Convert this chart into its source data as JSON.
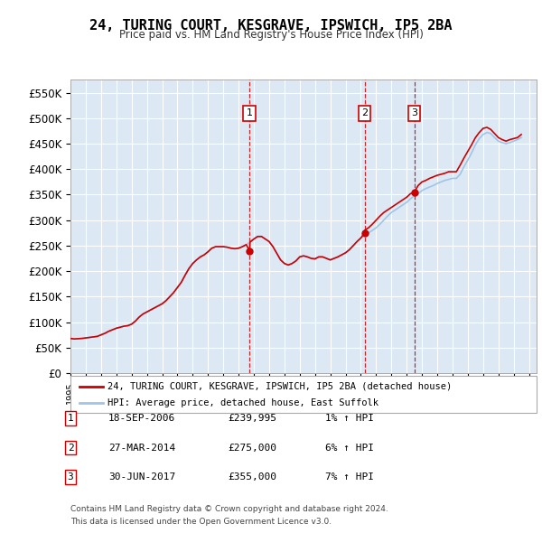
{
  "title": "24, TURING COURT, KESGRAVE, IPSWICH, IP5 2BA",
  "subtitle": "Price paid vs. HM Land Registry's House Price Index (HPI)",
  "ylabel_ticks": [
    "£0",
    "£50K",
    "£100K",
    "£150K",
    "£200K",
    "£250K",
    "£300K",
    "£350K",
    "£400K",
    "£450K",
    "£500K",
    "£550K"
  ],
  "ytick_values": [
    0,
    50000,
    100000,
    150000,
    200000,
    250000,
    300000,
    350000,
    400000,
    450000,
    500000,
    550000
  ],
  "ylim": [
    0,
    575000
  ],
  "xlim_start": 1995.0,
  "xlim_end": 2025.5,
  "background_color": "#dce9f5",
  "plot_bg_color": "#dce9f5",
  "grid_color": "#ffffff",
  "legend_label_red": "24, TURING COURT, KESGRAVE, IPSWICH, IP5 2BA (detached house)",
  "legend_label_blue": "HPI: Average price, detached house, East Suffolk",
  "transactions": [
    {
      "num": 1,
      "date": "18-SEP-2006",
      "price": "£239,995",
      "hpi": "1% ↑ HPI",
      "year": 2006.72,
      "value": 239995
    },
    {
      "num": 2,
      "date": "27-MAR-2014",
      "price": "£275,000",
      "hpi": "6% ↑ HPI",
      "year": 2014.24,
      "value": 275000
    },
    {
      "num": 3,
      "date": "30-JUN-2017",
      "price": "£355,000",
      "hpi": "7% ↑ HPI",
      "year": 2017.5,
      "value": 355000
    }
  ],
  "footnote1": "Contains HM Land Registry data © Crown copyright and database right 2024.",
  "footnote2": "This data is licensed under the Open Government Licence v3.0.",
  "hpi_data": {
    "years": [
      1995.0,
      1995.25,
      1995.5,
      1995.75,
      1996.0,
      1996.25,
      1996.5,
      1996.75,
      1997.0,
      1997.25,
      1997.5,
      1997.75,
      1998.0,
      1998.25,
      1998.5,
      1998.75,
      1999.0,
      1999.25,
      1999.5,
      1999.75,
      2000.0,
      2000.25,
      2000.5,
      2000.75,
      2001.0,
      2001.25,
      2001.5,
      2001.75,
      2002.0,
      2002.25,
      2002.5,
      2002.75,
      2003.0,
      2003.25,
      2003.5,
      2003.75,
      2004.0,
      2004.25,
      2004.5,
      2004.75,
      2005.0,
      2005.25,
      2005.5,
      2005.75,
      2006.0,
      2006.25,
      2006.5,
      2006.75,
      2007.0,
      2007.25,
      2007.5,
      2007.75,
      2008.0,
      2008.25,
      2008.5,
      2008.75,
      2009.0,
      2009.25,
      2009.5,
      2009.75,
      2010.0,
      2010.25,
      2010.5,
      2010.75,
      2011.0,
      2011.25,
      2011.5,
      2011.75,
      2012.0,
      2012.25,
      2012.5,
      2012.75,
      2013.0,
      2013.25,
      2013.5,
      2013.75,
      2014.0,
      2014.25,
      2014.5,
      2014.75,
      2015.0,
      2015.25,
      2015.5,
      2015.75,
      2016.0,
      2016.25,
      2016.5,
      2016.75,
      2017.0,
      2017.25,
      2017.5,
      2017.75,
      2018.0,
      2018.25,
      2018.5,
      2018.75,
      2019.0,
      2019.25,
      2019.5,
      2019.75,
      2020.0,
      2020.25,
      2020.5,
      2020.75,
      2021.0,
      2021.25,
      2021.5,
      2021.75,
      2022.0,
      2022.25,
      2022.5,
      2022.75,
      2023.0,
      2023.25,
      2023.5,
      2023.75,
      2024.0,
      2024.25,
      2024.5
    ],
    "values": [
      68000,
      67000,
      67500,
      68000,
      69000,
      70000,
      71000,
      72000,
      75000,
      78000,
      82000,
      85000,
      88000,
      90000,
      92000,
      93000,
      96000,
      102000,
      110000,
      116000,
      120000,
      124000,
      128000,
      132000,
      136000,
      142000,
      150000,
      158000,
      168000,
      178000,
      192000,
      205000,
      215000,
      222000,
      228000,
      232000,
      238000,
      245000,
      248000,
      248000,
      248000,
      247000,
      245000,
      244000,
      245000,
      248000,
      252000,
      257000,
      263000,
      268000,
      268000,
      263000,
      258000,
      248000,
      235000,
      222000,
      215000,
      212000,
      215000,
      220000,
      228000,
      230000,
      228000,
      225000,
      224000,
      228000,
      228000,
      225000,
      222000,
      225000,
      228000,
      232000,
      236000,
      242000,
      250000,
      258000,
      265000,
      270000,
      275000,
      280000,
      285000,
      292000,
      300000,
      308000,
      315000,
      320000,
      325000,
      330000,
      335000,
      342000,
      348000,
      352000,
      358000,
      362000,
      365000,
      368000,
      372000,
      375000,
      378000,
      380000,
      382000,
      382000,
      390000,
      405000,
      418000,
      432000,
      448000,
      460000,
      468000,
      472000,
      470000,
      462000,
      455000,
      452000,
      450000,
      452000,
      455000,
      458000,
      462000
    ]
  },
  "red_line_data": {
    "years": [
      1995.0,
      1995.25,
      1995.5,
      1995.75,
      1996.0,
      1996.25,
      1996.5,
      1996.75,
      1997.0,
      1997.25,
      1997.5,
      1997.75,
      1998.0,
      1998.25,
      1998.5,
      1998.75,
      1999.0,
      1999.25,
      1999.5,
      1999.75,
      2000.0,
      2000.25,
      2000.5,
      2000.75,
      2001.0,
      2001.25,
      2001.5,
      2001.75,
      2002.0,
      2002.25,
      2002.5,
      2002.75,
      2003.0,
      2003.25,
      2003.5,
      2003.75,
      2004.0,
      2004.25,
      2004.5,
      2004.75,
      2005.0,
      2005.25,
      2005.5,
      2005.75,
      2006.0,
      2006.25,
      2006.5,
      2006.72,
      2006.75,
      2007.0,
      2007.25,
      2007.5,
      2007.75,
      2008.0,
      2008.25,
      2008.5,
      2008.75,
      2009.0,
      2009.25,
      2009.5,
      2009.75,
      2010.0,
      2010.25,
      2010.5,
      2010.75,
      2011.0,
      2011.25,
      2011.5,
      2011.75,
      2012.0,
      2012.25,
      2012.5,
      2012.75,
      2013.0,
      2013.25,
      2013.5,
      2013.75,
      2014.0,
      2014.24,
      2014.25,
      2014.5,
      2014.75,
      2015.0,
      2015.25,
      2015.5,
      2015.75,
      2016.0,
      2016.25,
      2016.5,
      2016.75,
      2017.0,
      2017.25,
      2017.5,
      2017.75,
      2018.0,
      2018.25,
      2018.5,
      2018.75,
      2019.0,
      2019.25,
      2019.5,
      2019.75,
      2020.0,
      2020.25,
      2020.5,
      2020.75,
      2021.0,
      2021.25,
      2021.5,
      2021.75,
      2022.0,
      2022.25,
      2022.5,
      2022.75,
      2023.0,
      2023.25,
      2023.5,
      2023.75,
      2024.0,
      2024.25,
      2024.5
    ],
    "values": [
      68000,
      67000,
      67500,
      68000,
      69000,
      70000,
      71000,
      72000,
      75000,
      78000,
      82000,
      85000,
      88000,
      90000,
      92000,
      93000,
      96000,
      102000,
      110000,
      116000,
      120000,
      124000,
      128000,
      132000,
      136000,
      142000,
      150000,
      158000,
      168000,
      178000,
      192000,
      205000,
      215000,
      222000,
      228000,
      232000,
      238000,
      245000,
      248000,
      248000,
      248000,
      247000,
      245000,
      244000,
      245000,
      248000,
      252000,
      239995,
      257000,
      263000,
      268000,
      268000,
      263000,
      258000,
      248000,
      235000,
      222000,
      215000,
      212000,
      215000,
      220000,
      228000,
      230000,
      228000,
      225000,
      224000,
      228000,
      228000,
      225000,
      222000,
      225000,
      228000,
      232000,
      236000,
      242000,
      250000,
      258000,
      265000,
      275000,
      280000,
      285000,
      292000,
      300000,
      308000,
      315000,
      320000,
      325000,
      330000,
      335000,
      340000,
      345000,
      352000,
      355000,
      368000,
      375000,
      378000,
      382000,
      385000,
      388000,
      390000,
      392000,
      395000,
      395000,
      395000,
      408000,
      422000,
      435000,
      448000,
      462000,
      472000,
      480000,
      482000,
      478000,
      470000,
      462000,
      458000,
      455000,
      458000,
      460000,
      462000,
      468000
    ]
  }
}
